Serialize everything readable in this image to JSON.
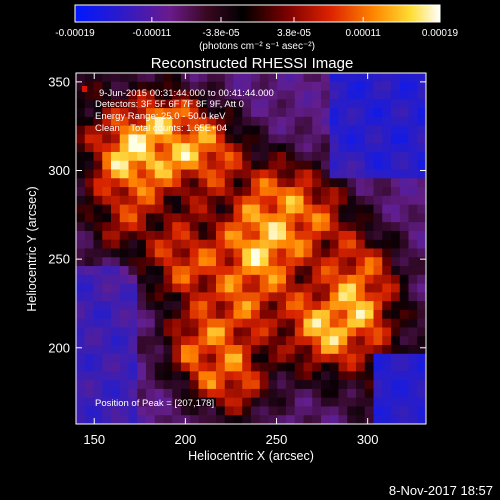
{
  "chart_data": {
    "type": "heatmap",
    "title": "Reconstructed RHESSI Image",
    "xlabel": "Heliocentric X (arcsec)",
    "ylabel": "Heliocentric Y (arcsec)",
    "xlim": [
      140,
      332
    ],
    "ylim": [
      157,
      355
    ],
    "x_ticks": [
      150,
      200,
      250,
      300
    ],
    "y_ticks": [
      200,
      250,
      300,
      350
    ],
    "colorbar": {
      "ticks": [
        -0.00019,
        -0.00011,
        -3.8e-05,
        3.8e-05,
        0.00011,
        0.00019
      ],
      "tick_labels": [
        "-0.00019",
        "-0.00011",
        "-3.8e-05",
        "3.8e-05",
        "0.00011",
        "0.00019"
      ],
      "unit_label": "(photons cm⁻² s⁻¹ asec⁻²)",
      "range": [
        -0.00019,
        0.00019
      ]
    },
    "grid": false,
    "peak_position": [
      207,
      178
    ]
  },
  "annotations": {
    "time_range": "9-Jun-2015 00:31:44.000 to 00:41:44.000",
    "detectors": "Detectors: 3F 5F 6F 7F 8F 9F, Att 0",
    "energy_range": "Energy Range: 25.0 - 50.0 keV",
    "clean_counts": "Clean    Total counts: 1.65E+04",
    "peak_position": "Position of Peak = [207,178]"
  },
  "footer": {
    "date": "8-Nov-2017 18:57"
  }
}
